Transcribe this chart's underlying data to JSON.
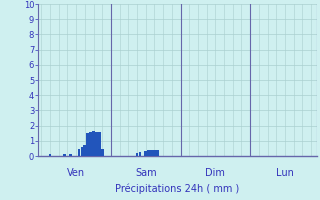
{
  "title": "Précipitations 24h ( mm )",
  "ylabel_values": [
    0,
    1,
    2,
    3,
    4,
    5,
    6,
    7,
    8,
    9,
    10
  ],
  "ylim": [
    0,
    10
  ],
  "background_color": "#cff0f0",
  "grid_color": "#aacfcf",
  "bar_color": "#2255bb",
  "axis_color": "#6666aa",
  "text_color": "#3333bb",
  "day_labels": [
    "Ven",
    "Sam",
    "Dim",
    "Lun"
  ],
  "total_hours": 96,
  "bars": [
    {
      "hour": 3,
      "value": 0.12
    },
    {
      "hour": 8,
      "value": 0.12
    },
    {
      "hour": 10,
      "value": 0.12
    },
    {
      "hour": 13,
      "value": 0.45
    },
    {
      "hour": 14,
      "value": 0.6
    },
    {
      "hour": 15,
      "value": 0.75
    },
    {
      "hour": 16,
      "value": 1.5
    },
    {
      "hour": 17,
      "value": 1.6
    },
    {
      "hour": 18,
      "value": 1.65
    },
    {
      "hour": 19,
      "value": 1.6
    },
    {
      "hour": 20,
      "value": 1.55
    },
    {
      "hour": 21,
      "value": 0.45
    },
    {
      "hour": 33,
      "value": 0.22
    },
    {
      "hour": 34,
      "value": 0.28
    },
    {
      "hour": 36,
      "value": 0.32
    },
    {
      "hour": 37,
      "value": 0.38
    },
    {
      "hour": 38,
      "value": 0.38
    },
    {
      "hour": 39,
      "value": 0.38
    },
    {
      "hour": 40,
      "value": 0.38
    }
  ]
}
